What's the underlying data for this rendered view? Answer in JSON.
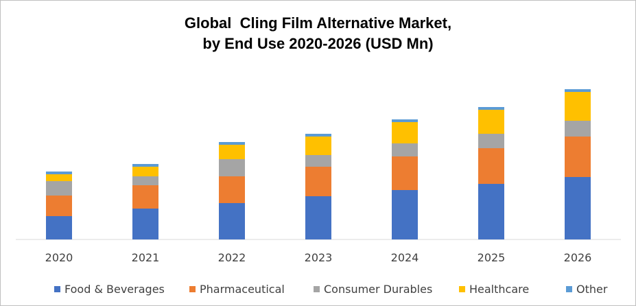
{
  "chart_data": {
    "type": "bar",
    "stacked": true,
    "title_lines": [
      "Global  Cling Film Alternative Market,",
      "by End Use 2020-2026 (USD Mn)"
    ],
    "categories": [
      "2020",
      "2021",
      "2022",
      "2023",
      "2024",
      "2025",
      "2026"
    ],
    "series": [
      {
        "name": "Food & Beverages",
        "color": "#4472c4",
        "values": [
          34,
          45,
          53,
          63,
          72,
          81,
          91
        ]
      },
      {
        "name": "Pharmaceutical",
        "color": "#ed7d31",
        "values": [
          30,
          34,
          39,
          43,
          49,
          52,
          59
        ]
      },
      {
        "name": "Consumer Durables",
        "color": "#a5a5a5",
        "values": [
          21,
          13,
          25,
          17,
          19,
          21,
          23
        ]
      },
      {
        "name": "Healthcare",
        "color": "#ffc000",
        "values": [
          10,
          14,
          21,
          27,
          31,
          35,
          42
        ]
      },
      {
        "name": "Other",
        "color": "#5b9bd5",
        "values": [
          4,
          4,
          4,
          4,
          4,
          4,
          4
        ]
      }
    ],
    "ylim": [
      0,
      220
    ],
    "y_axis_visible": false,
    "grid": false,
    "legend_position": "bottom"
  }
}
